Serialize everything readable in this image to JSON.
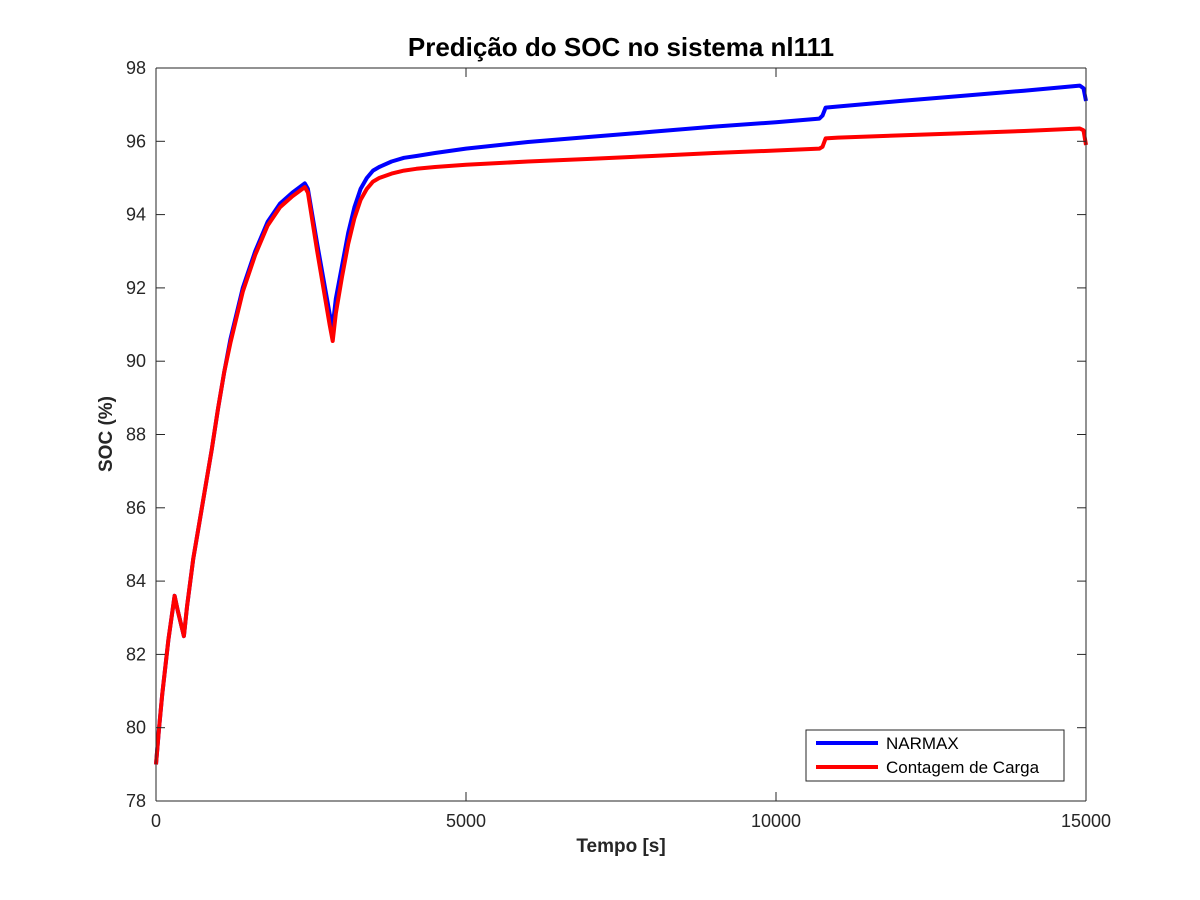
{
  "chart_data": {
    "type": "line",
    "title": "Predição do SOC no sistema nl111",
    "xlabel": "Tempo [s]",
    "ylabel": "SOC (%)",
    "xlim": [
      0,
      15000
    ],
    "ylim": [
      78,
      98
    ],
    "xticks": [
      0,
      5000,
      10000,
      15000
    ],
    "xtick_labels": [
      "0",
      "5000",
      "10000",
      "15000"
    ],
    "yticks": [
      78,
      80,
      82,
      84,
      86,
      88,
      90,
      92,
      94,
      96,
      98
    ],
    "ytick_labels": [
      "78",
      "80",
      "82",
      "84",
      "86",
      "88",
      "90",
      "92",
      "94",
      "96",
      "98"
    ],
    "grid": false,
    "legend_position": "bottom-right",
    "series": [
      {
        "name": "NARMAX",
        "color": "#0000ff",
        "x": [
          0,
          50,
          100,
          200,
          300,
          350,
          450,
          500,
          600,
          700,
          800,
          900,
          1000,
          1100,
          1200,
          1300,
          1400,
          1600,
          1800,
          2000,
          2200,
          2400,
          2450,
          2600,
          2800,
          2850,
          2900,
          3000,
          3100,
          3200,
          3300,
          3400,
          3500,
          3600,
          3800,
          4000,
          4200,
          4500,
          5000,
          6000,
          7000,
          8000,
          9000,
          10000,
          10700,
          10750,
          10800,
          11000,
          12000,
          13000,
          14000,
          14900,
          14960,
          15000
        ],
        "y": [
          79.0,
          80.0,
          80.9,
          82.4,
          83.6,
          83.2,
          82.5,
          83.3,
          84.6,
          85.6,
          86.6,
          87.6,
          88.7,
          89.7,
          90.6,
          91.3,
          92.0,
          93.0,
          93.8,
          94.3,
          94.6,
          94.85,
          94.7,
          93.2,
          91.3,
          90.95,
          91.7,
          92.6,
          93.5,
          94.2,
          94.7,
          95.0,
          95.2,
          95.3,
          95.45,
          95.55,
          95.6,
          95.68,
          95.8,
          95.98,
          96.12,
          96.26,
          96.4,
          96.52,
          96.62,
          96.7,
          96.92,
          96.95,
          97.1,
          97.24,
          97.38,
          97.52,
          97.45,
          97.1
        ]
      },
      {
        "name": "Contagem de Carga",
        "color": "#ff0000",
        "x": [
          0,
          50,
          100,
          200,
          300,
          350,
          450,
          500,
          600,
          700,
          800,
          900,
          1000,
          1100,
          1200,
          1300,
          1400,
          1600,
          1800,
          2000,
          2200,
          2400,
          2450,
          2600,
          2800,
          2850,
          2900,
          3000,
          3100,
          3200,
          3300,
          3400,
          3500,
          3600,
          3800,
          4000,
          4200,
          4500,
          5000,
          6000,
          7000,
          8000,
          9000,
          10000,
          10700,
          10750,
          10800,
          11000,
          12000,
          13000,
          14000,
          14900,
          14960,
          15000
        ],
        "y": [
          79.0,
          80.0,
          80.9,
          82.4,
          83.6,
          83.2,
          82.5,
          83.3,
          84.6,
          85.6,
          86.6,
          87.6,
          88.7,
          89.7,
          90.5,
          91.2,
          91.9,
          92.9,
          93.7,
          94.2,
          94.5,
          94.75,
          94.6,
          93.0,
          91.0,
          90.55,
          91.3,
          92.3,
          93.2,
          93.9,
          94.4,
          94.7,
          94.9,
          95.0,
          95.12,
          95.2,
          95.25,
          95.3,
          95.36,
          95.45,
          95.52,
          95.6,
          95.68,
          95.75,
          95.8,
          95.85,
          96.08,
          96.1,
          96.16,
          96.22,
          96.28,
          96.35,
          96.3,
          95.9
        ]
      }
    ]
  }
}
